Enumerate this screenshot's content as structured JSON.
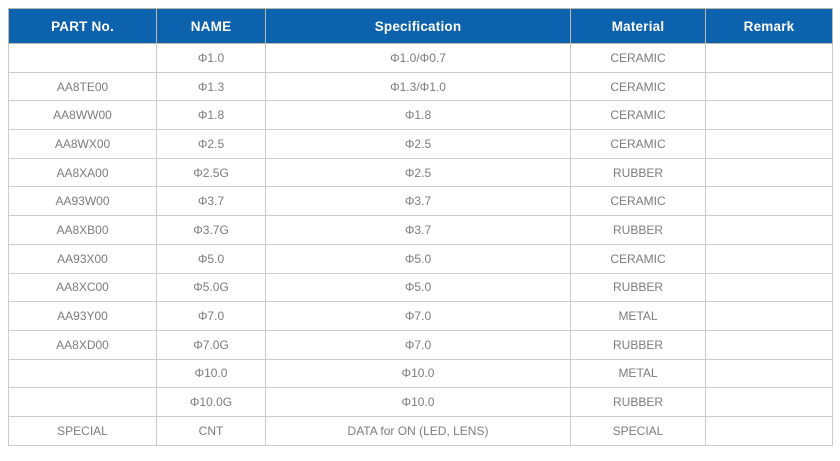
{
  "table": {
    "name": "parts-specification-table",
    "headers": [
      "PART No.",
      "NAME",
      "Specification",
      "Material",
      "Remark"
    ],
    "field_keys": [
      "part-no",
      "name",
      "specification",
      "material",
      "remark"
    ],
    "rows": [
      [
        "",
        "Φ1.0",
        "Φ1.0/Φ0.7",
        "CERAMIC",
        ""
      ],
      [
        "AA8TE00",
        "Φ1.3",
        "Φ1.3/Φ1.0",
        "CERAMIC",
        ""
      ],
      [
        "AA8WW00",
        "Φ1.8",
        "Φ1.8",
        "CERAMIC",
        ""
      ],
      [
        "AA8WX00",
        "Φ2.5",
        "Φ2.5",
        "CERAMIC",
        ""
      ],
      [
        "AA8XA00",
        "Φ2.5G",
        "Φ2.5",
        "RUBBER",
        ""
      ],
      [
        "AA93W00",
        "Φ3.7",
        "Φ3.7",
        "CERAMIC",
        ""
      ],
      [
        "AA8XB00",
        "Φ3.7G",
        "Φ3.7",
        "RUBBER",
        ""
      ],
      [
        "AA93X00",
        "Φ5.0",
        "Φ5.0",
        "CERAMIC",
        ""
      ],
      [
        "AA8XC00",
        "Φ5.0G",
        "Φ5.0",
        "RUBBER",
        ""
      ],
      [
        "AA93Y00",
        "Φ7.0",
        "Φ7.0",
        "METAL",
        ""
      ],
      [
        "AA8XD00",
        "Φ7.0G",
        "Φ7.0",
        "RUBBER",
        ""
      ],
      [
        "",
        "Φ10.0",
        "Φ10.0",
        "METAL",
        ""
      ],
      [
        "",
        "Φ10.0G",
        "Φ10.0",
        "RUBBER",
        ""
      ],
      [
        "SPECIAL",
        "CNT",
        "DATA for ON (LED, LENS)",
        "SPECIAL",
        ""
      ]
    ],
    "colors": {
      "header_bg": "#0c62ac",
      "header_text": "#ffffff",
      "cell_text": "#7c7c7c",
      "grid_line": "#cccccc"
    }
  },
  "chart_data": {
    "type": "table",
    "title": "",
    "columns": [
      "PART No.",
      "NAME",
      "Specification",
      "Material",
      "Remark"
    ],
    "rows": [
      [
        "",
        "Φ1.0",
        "Φ1.0/Φ0.7",
        "CERAMIC",
        ""
      ],
      [
        "AA8TE00",
        "Φ1.3",
        "Φ1.3/Φ1.0",
        "CERAMIC",
        ""
      ],
      [
        "AA8WW00",
        "Φ1.8",
        "Φ1.8",
        "CERAMIC",
        ""
      ],
      [
        "AA8WX00",
        "Φ2.5",
        "Φ2.5",
        "CERAMIC",
        ""
      ],
      [
        "AA8XA00",
        "Φ2.5G",
        "Φ2.5",
        "RUBBER",
        ""
      ],
      [
        "AA93W00",
        "Φ3.7",
        "Φ3.7",
        "CERAMIC",
        ""
      ],
      [
        "AA8XB00",
        "Φ3.7G",
        "Φ3.7",
        "RUBBER",
        ""
      ],
      [
        "AA93X00",
        "Φ5.0",
        "Φ5.0",
        "CERAMIC",
        ""
      ],
      [
        "AA8XC00",
        "Φ5.0G",
        "Φ5.0",
        "RUBBER",
        ""
      ],
      [
        "AA93Y00",
        "Φ7.0",
        "Φ7.0",
        "METAL",
        ""
      ],
      [
        "AA8XD00",
        "Φ7.0G",
        "Φ7.0",
        "RUBBER",
        ""
      ],
      [
        "",
        "Φ10.0",
        "Φ10.0",
        "METAL",
        ""
      ],
      [
        "",
        "Φ10.0G",
        "Φ10.0",
        "RUBBER",
        ""
      ],
      [
        "SPECIAL",
        "CNT",
        "DATA for ON (LED, LENS)",
        "SPECIAL",
        ""
      ]
    ]
  }
}
